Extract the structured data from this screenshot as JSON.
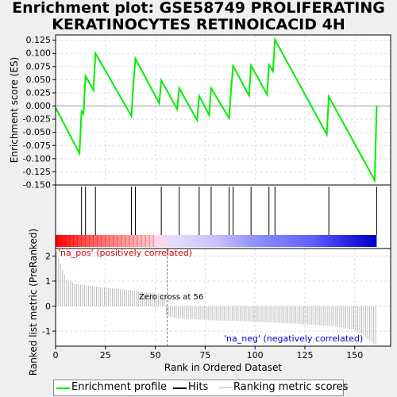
{
  "title_lines": [
    "Enrichment plot: GSE58749 PROLIFERATING",
    "KERATINOCYTES RETINOICACID 4H"
  ],
  "colors": {
    "es": "#00ee00",
    "hits": "#000000",
    "metric": "#bbbbbb",
    "pos": "#ff0000",
    "neg": "#0000ff",
    "grid": "#dddddd"
  },
  "legend": {
    "es": "Enrichment profile",
    "hits": "Hits",
    "metric": "Ranking metric scores"
  },
  "chart_data": [
    {
      "type": "line",
      "name": "enrichment-profile",
      "ylabel": "Enrichment score (ES)",
      "ylim": [
        -0.15,
        0.135
      ],
      "yticks": [
        -0.15,
        -0.125,
        -0.1,
        -0.075,
        -0.05,
        -0.025,
        0.0,
        0.025,
        0.05,
        0.075,
        0.1,
        0.125
      ],
      "ytick_labels": [
        "-0.150",
        "-0.125",
        "-0.100",
        "-0.075",
        "-0.050",
        "-0.025",
        "0.000",
        "0.025",
        "0.050",
        "0.075",
        "0.100",
        "0.125"
      ],
      "xlim": [
        0,
        168
      ],
      "grid": true,
      "x": [
        0,
        12,
        13,
        14,
        15,
        19,
        20,
        38,
        39,
        40,
        52,
        53,
        61,
        62,
        71,
        72,
        77,
        78,
        87,
        88,
        89,
        97,
        98,
        106,
        107,
        109,
        110,
        136,
        137,
        160,
        161
      ],
      "y": [
        -0.003,
        -0.09,
        -0.01,
        -0.015,
        0.057,
        0.03,
        0.1,
        -0.019,
        0.04,
        0.09,
        0.005,
        0.049,
        -0.006,
        0.034,
        -0.027,
        0.019,
        -0.017,
        0.034,
        -0.023,
        0.03,
        0.076,
        0.02,
        0.077,
        0.022,
        0.078,
        0.066,
        0.126,
        -0.054,
        0.018,
        -0.141,
        0.0
      ]
    },
    {
      "type": "hits",
      "name": "hits",
      "x": [
        13,
        15,
        20,
        38,
        40,
        53,
        62,
        72,
        78,
        87,
        89,
        98,
        107,
        110,
        137,
        161
      ]
    },
    {
      "type": "bar",
      "name": "ranking-metric",
      "xlabel": "Rank in Ordered Dataset",
      "ylabel": "Ranked list metric (PreRanked)",
      "ylim": [
        -1.6,
        2.3
      ],
      "yticks": [
        -1,
        0,
        1,
        2
      ],
      "ytick_labels": [
        "-1",
        "0",
        "1",
        "2"
      ],
      "xticks": [
        0,
        25,
        50,
        75,
        100,
        125,
        150
      ],
      "xtick_labels": [
        "0",
        "25",
        "50",
        "75",
        "100",
        "125",
        "150"
      ],
      "n": 161,
      "points_x": [
        1,
        2,
        3,
        4,
        6,
        10,
        20,
        40,
        55,
        56,
        60,
        80,
        100,
        120,
        140,
        150,
        155,
        158,
        161
      ],
      "points_y": [
        2.2,
        1.9,
        1.7,
        1.45,
        1.05,
        0.9,
        0.78,
        0.62,
        0.46,
        -0.38,
        -0.48,
        -0.57,
        -0.62,
        -0.7,
        -0.8,
        -0.93,
        -1.15,
        -1.4,
        -1.55
      ],
      "zero_cross": 56,
      "zero_cross_label": "Zero cross at 56",
      "pos_label": "'na_pos' (positively correlated)",
      "neg_label": "'na_neg' (negatively correlated)"
    }
  ]
}
